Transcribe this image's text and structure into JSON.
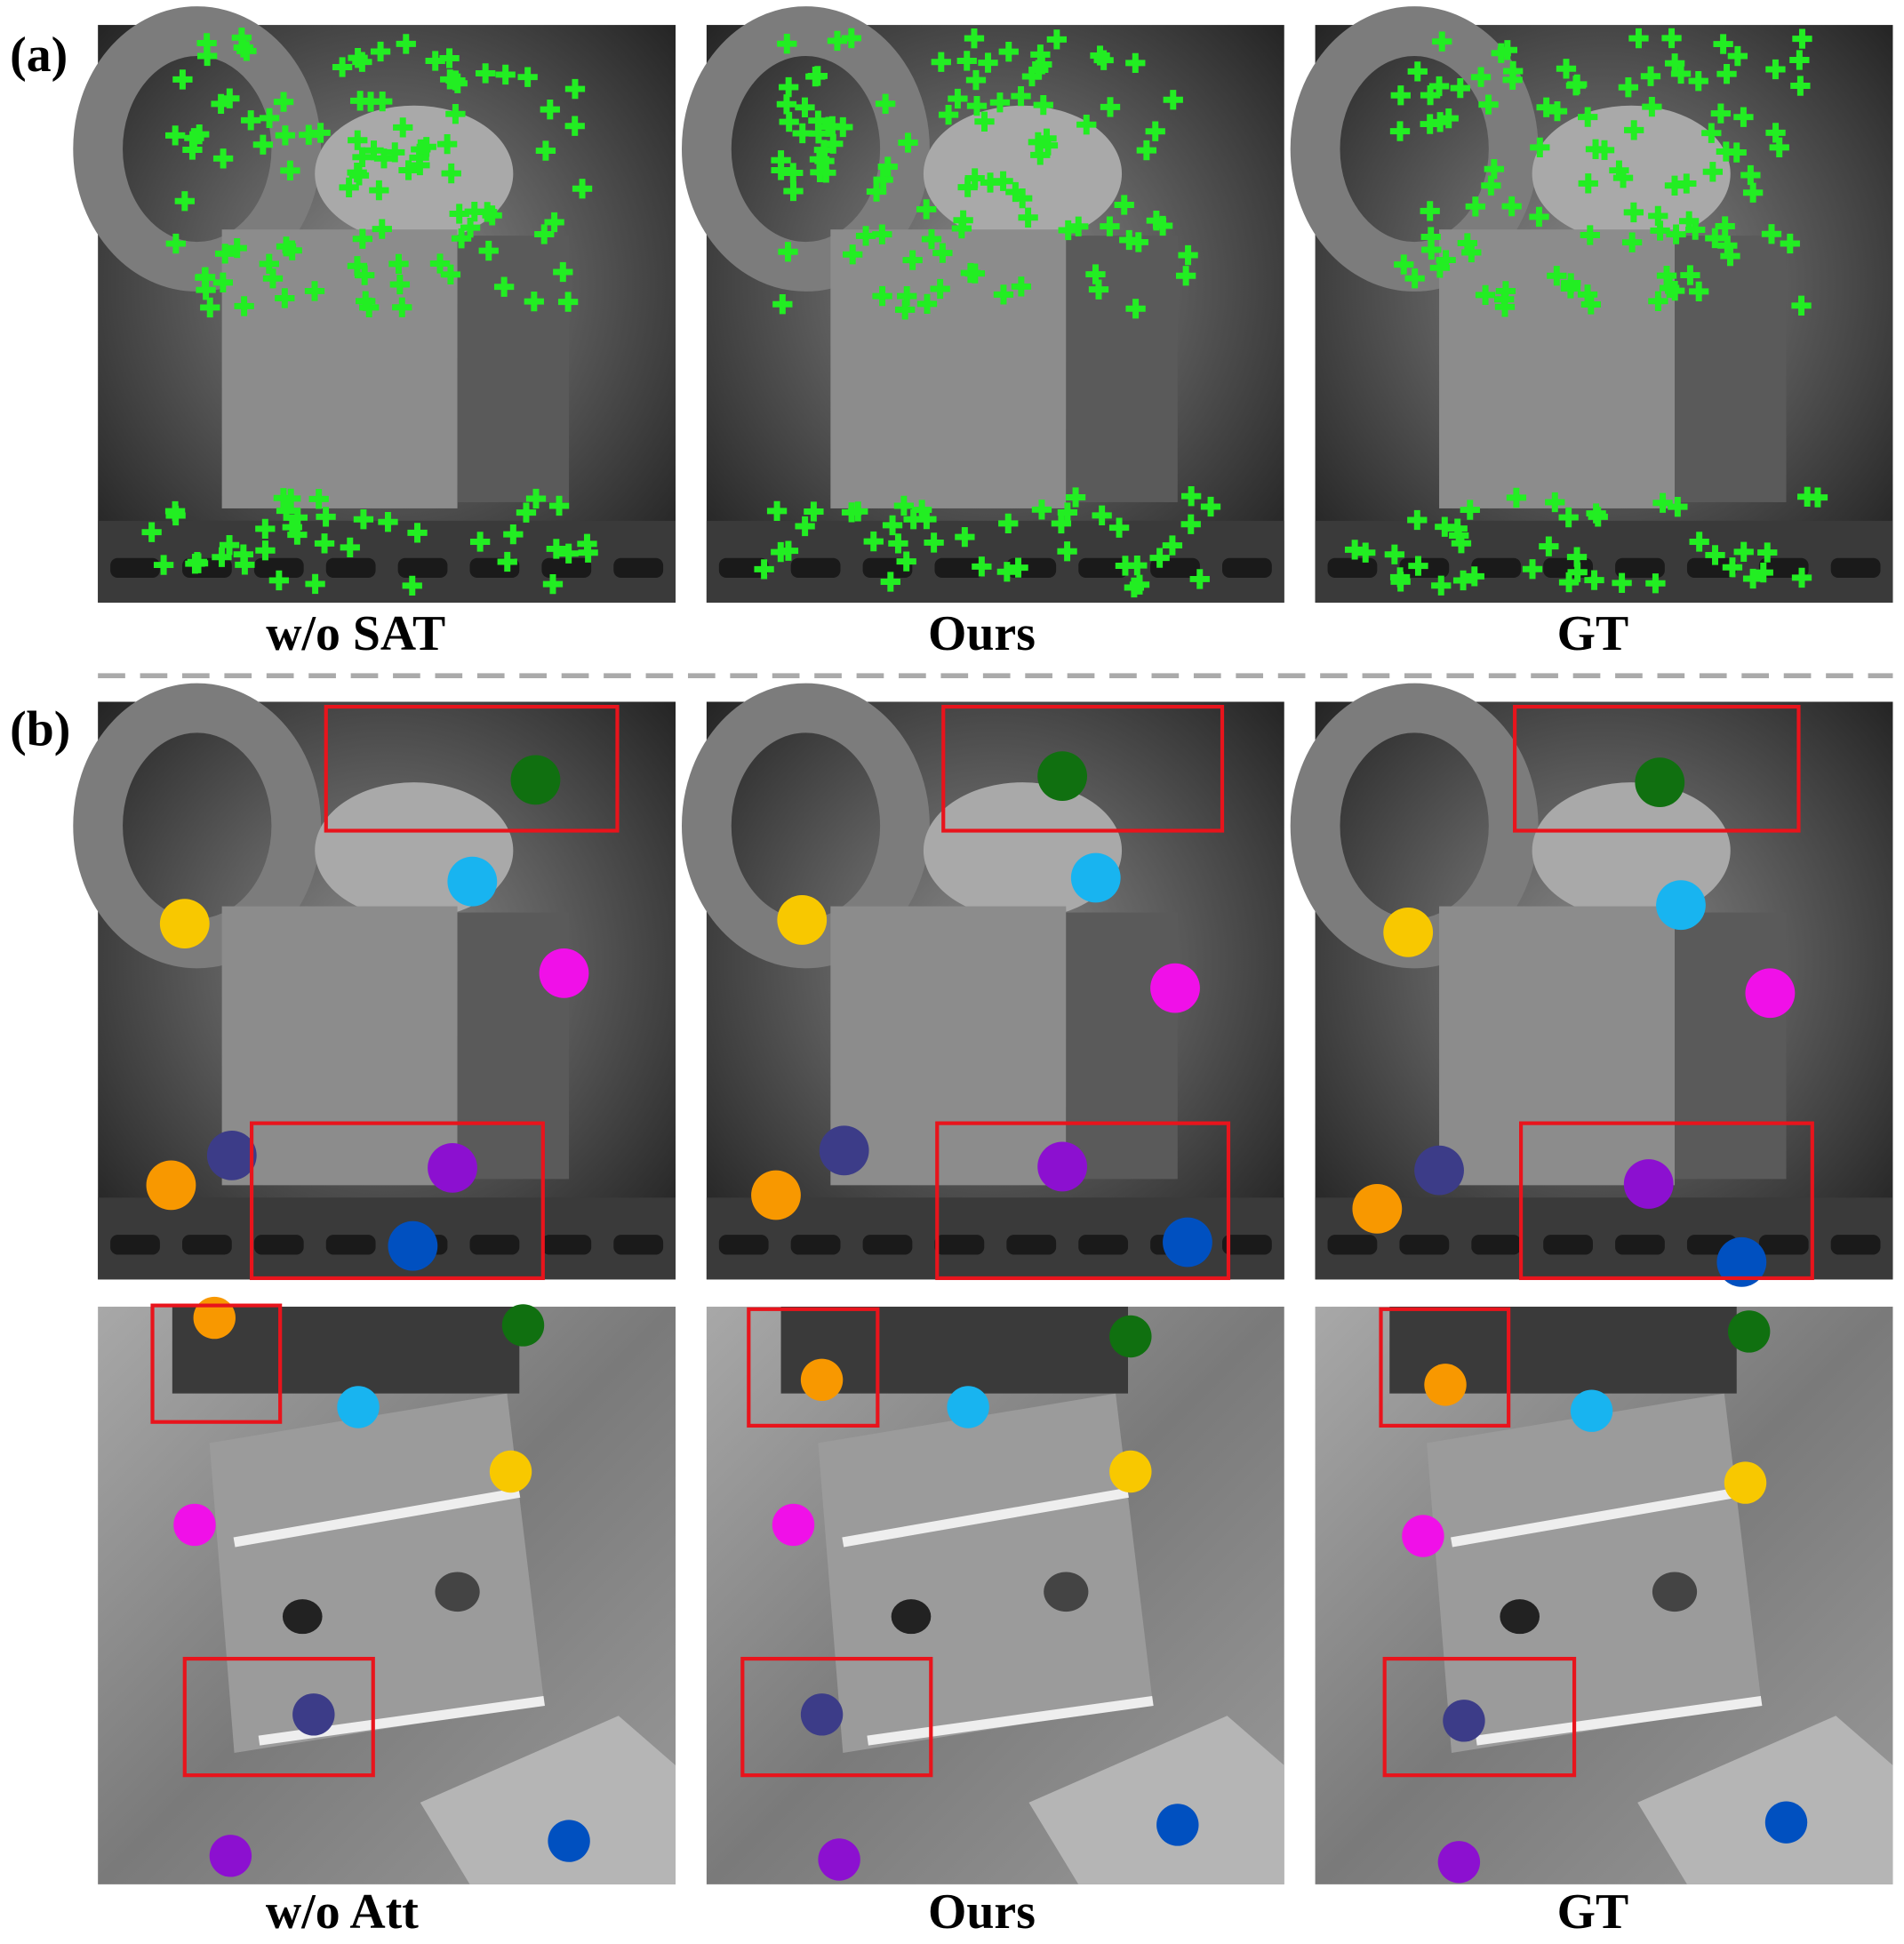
{
  "figure": {
    "a": {
      "label": "(a)",
      "captions": [
        "w/o SAT",
        "Ours",
        "GT"
      ]
    },
    "b": {
      "label": "(b)",
      "captions": [
        "w/o Att",
        "Ours",
        "GT"
      ]
    }
  }
}
